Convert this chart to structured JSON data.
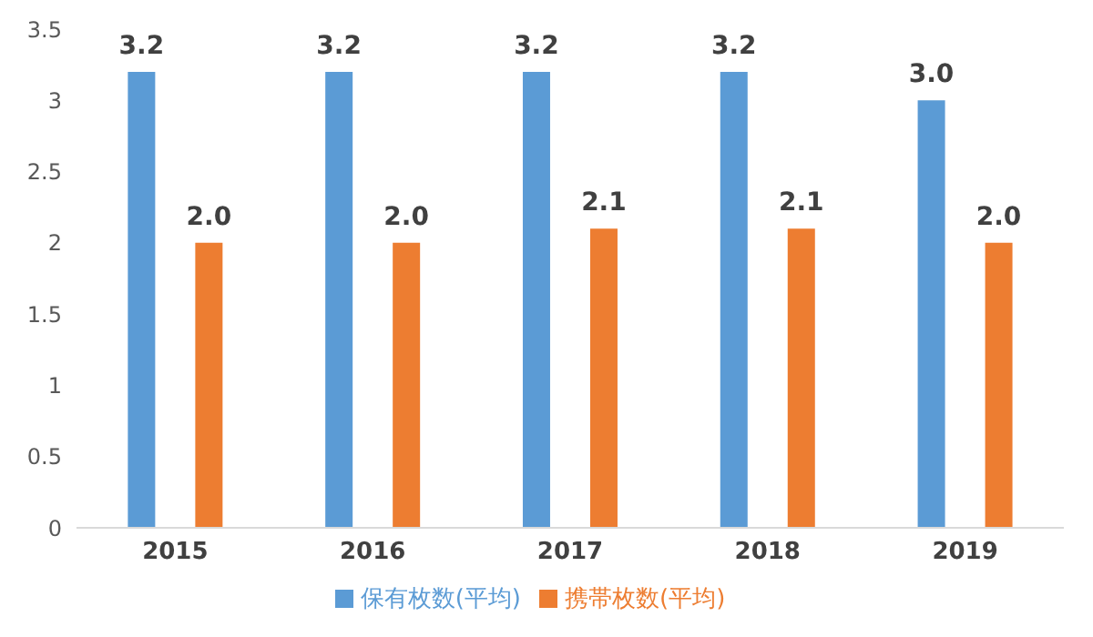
{
  "chart_data": {
    "type": "bar",
    "categories": [
      "2015",
      "2016",
      "2017",
      "2018",
      "2019"
    ],
    "series": [
      {
        "name": "保有枚数(平均)",
        "color": "#5b9bd5",
        "values": [
          3.2,
          3.2,
          3.2,
          3.2,
          3.0
        ],
        "value_labels": [
          "3.2",
          "3.2",
          "3.2",
          "3.2",
          "3.0"
        ]
      },
      {
        "name": "携帯枚数(平均)",
        "color": "#ed7d31",
        "values": [
          2.0,
          2.0,
          2.1,
          2.1,
          2.0
        ],
        "value_labels": [
          "2.0",
          "2.0",
          "2.1",
          "2.1",
          "2.0"
        ]
      }
    ],
    "ylim": [
      0,
      3.5
    ],
    "yticks": [
      0,
      0.5,
      1,
      1.5,
      2,
      2.5,
      3,
      3.5
    ],
    "grid": false,
    "legend": "bottom"
  }
}
